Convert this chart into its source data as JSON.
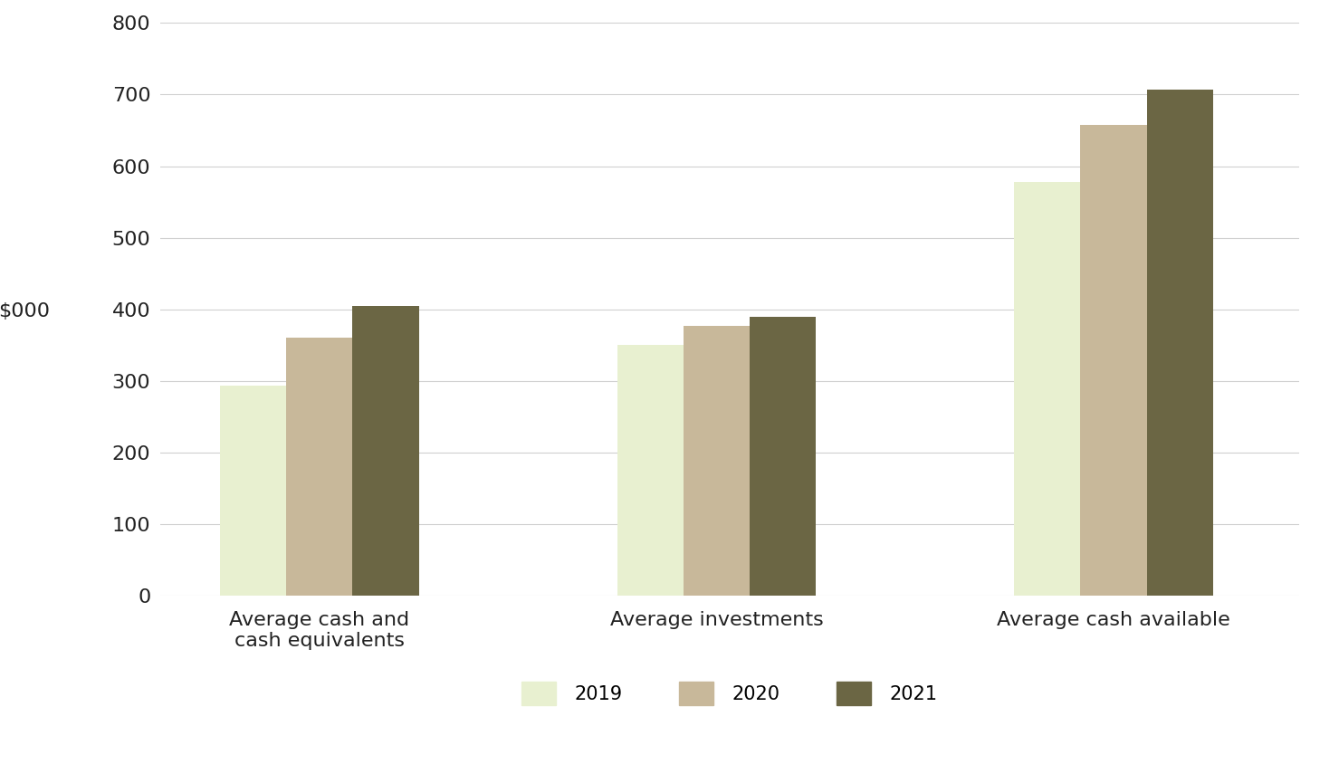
{
  "categories": [
    "Average cash and\ncash equivalents",
    "Average investments",
    "Average cash available"
  ],
  "years": [
    "2019",
    "2020",
    "2021"
  ],
  "values": [
    [
      293,
      360,
      405
    ],
    [
      350,
      377,
      390
    ],
    [
      578,
      658,
      707
    ]
  ],
  "bar_colors": [
    "#e8f0d0",
    "#c8b89a",
    "#6b6644"
  ],
  "ylabel": "$000",
  "ylim": [
    0,
    800
  ],
  "yticks": [
    0,
    100,
    200,
    300,
    400,
    500,
    600,
    700,
    800
  ],
  "background_color": "#ffffff",
  "grid_color": "#d0d0d0",
  "legend_labels": [
    "2019",
    "2020",
    "2021"
  ],
  "bar_width": 0.25,
  "tick_fontsize": 16,
  "label_fontsize": 16,
  "legend_fontsize": 15
}
